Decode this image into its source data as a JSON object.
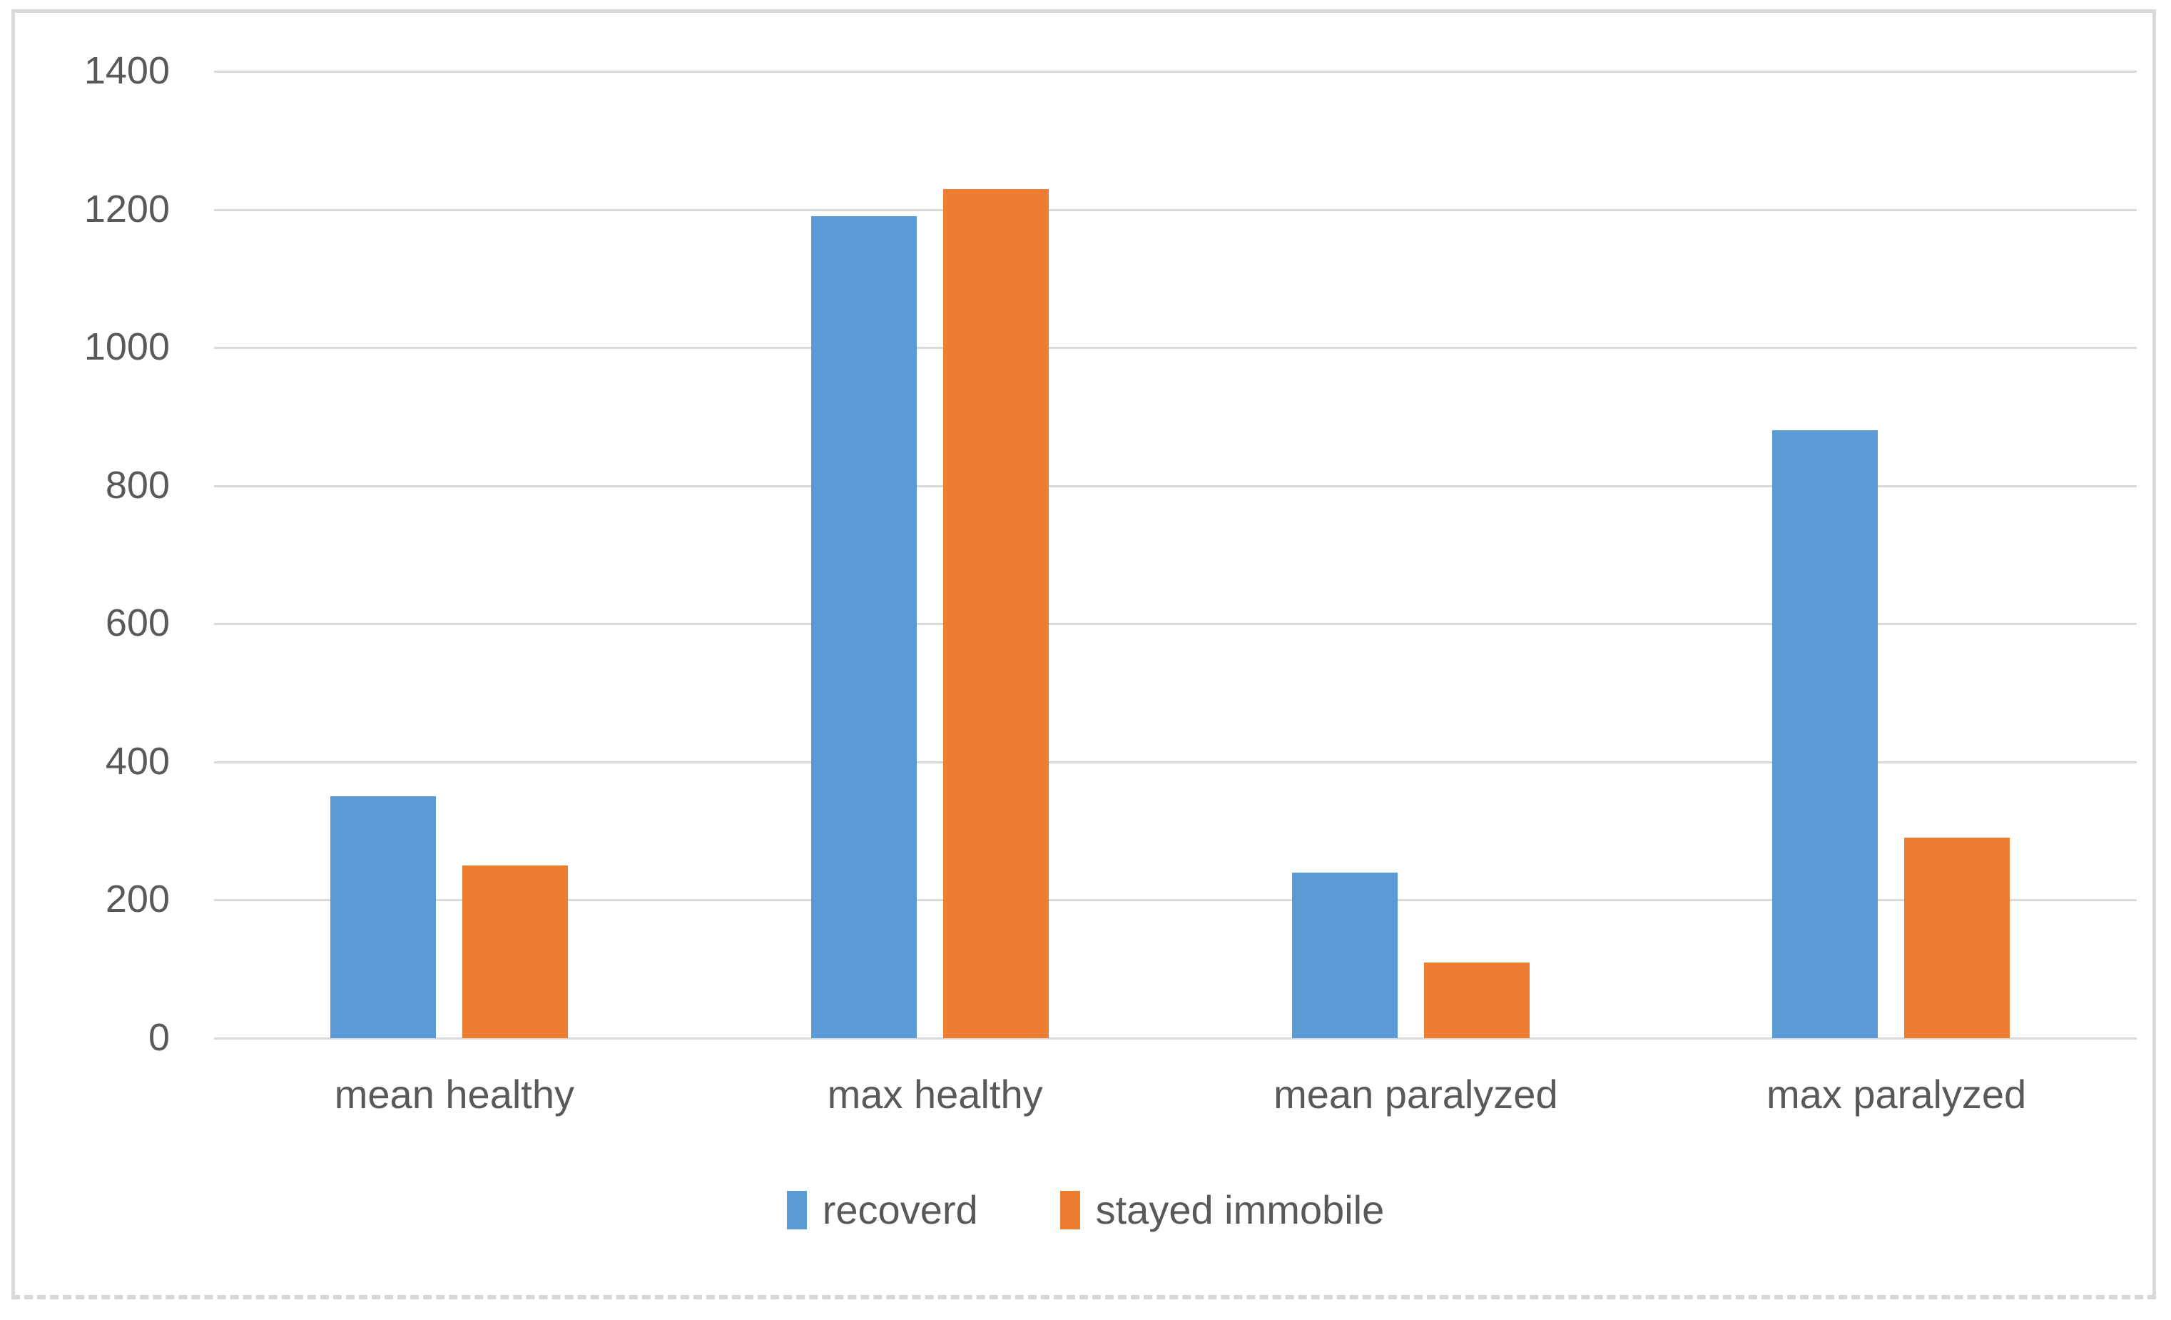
{
  "chart_data": {
    "type": "bar",
    "title": "",
    "categories": [
      "mean healthy",
      "max healthy",
      "mean paralyzed",
      "max paralyzed"
    ],
    "series": [
      {
        "name": "recoverd",
        "color": "#5b9bd5",
        "values": [
          350,
          1190,
          240,
          880
        ]
      },
      {
        "name": "stayed immobile",
        "color": "#ed7d31",
        "values": [
          250,
          1230,
          110,
          290
        ]
      }
    ],
    "ylim": [
      0,
      1400
    ],
    "yticks": [
      0,
      200,
      400,
      600,
      800,
      1000,
      1200,
      1400
    ],
    "ytick_interval": 200,
    "grid": "horizontal",
    "legend_position": "bottom",
    "axis_text_color": "#595959",
    "gridline_color": "#d9d9d9",
    "frame_border_color": "#d9d9d9",
    "background_color": "#ffffff"
  }
}
